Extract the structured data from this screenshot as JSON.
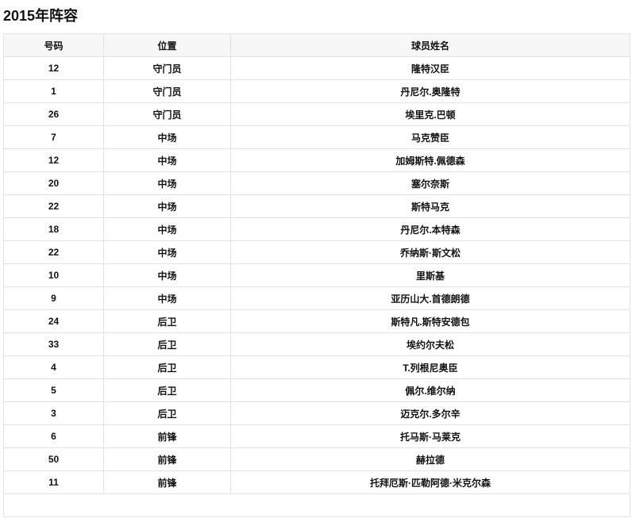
{
  "title": "2015年阵容",
  "columns": [
    "号码",
    "位置",
    "球员姓名"
  ],
  "rows": [
    [
      "12",
      "守门员",
      "隆特汉臣"
    ],
    [
      "1",
      "守门员",
      "丹尼尔.奥隆特"
    ],
    [
      "26",
      "守门员",
      "埃里克.巴顿"
    ],
    [
      "7",
      "中场",
      "马克赞臣"
    ],
    [
      "12",
      "中场",
      "加姆斯特.佩德森"
    ],
    [
      "20",
      "中场",
      "塞尔奈斯"
    ],
    [
      "22",
      "中场",
      "斯特马克"
    ],
    [
      "18",
      "中场",
      "丹尼尔.本特森"
    ],
    [
      "22",
      "中场",
      "乔纳斯·斯文松"
    ],
    [
      "10",
      "中场",
      "里斯基"
    ],
    [
      "9",
      "中场",
      "亚历山大.首德朗德"
    ],
    [
      "24",
      "后卫",
      "斯特凡.斯特安德包"
    ],
    [
      "33",
      "后卫",
      "埃约尔夫松"
    ],
    [
      "4",
      "后卫",
      "T.列根尼奥臣"
    ],
    [
      "5",
      "后卫",
      "佩尔.维尔纳"
    ],
    [
      "3",
      "后卫",
      "迈克尔.多尔辛"
    ],
    [
      "6",
      "前锋",
      "托马斯·马莱克"
    ],
    [
      "50",
      "前锋",
      "赫拉德"
    ],
    [
      "11",
      "前锋",
      "托拜厄斯·匹勒阿德·米克尔森"
    ]
  ]
}
